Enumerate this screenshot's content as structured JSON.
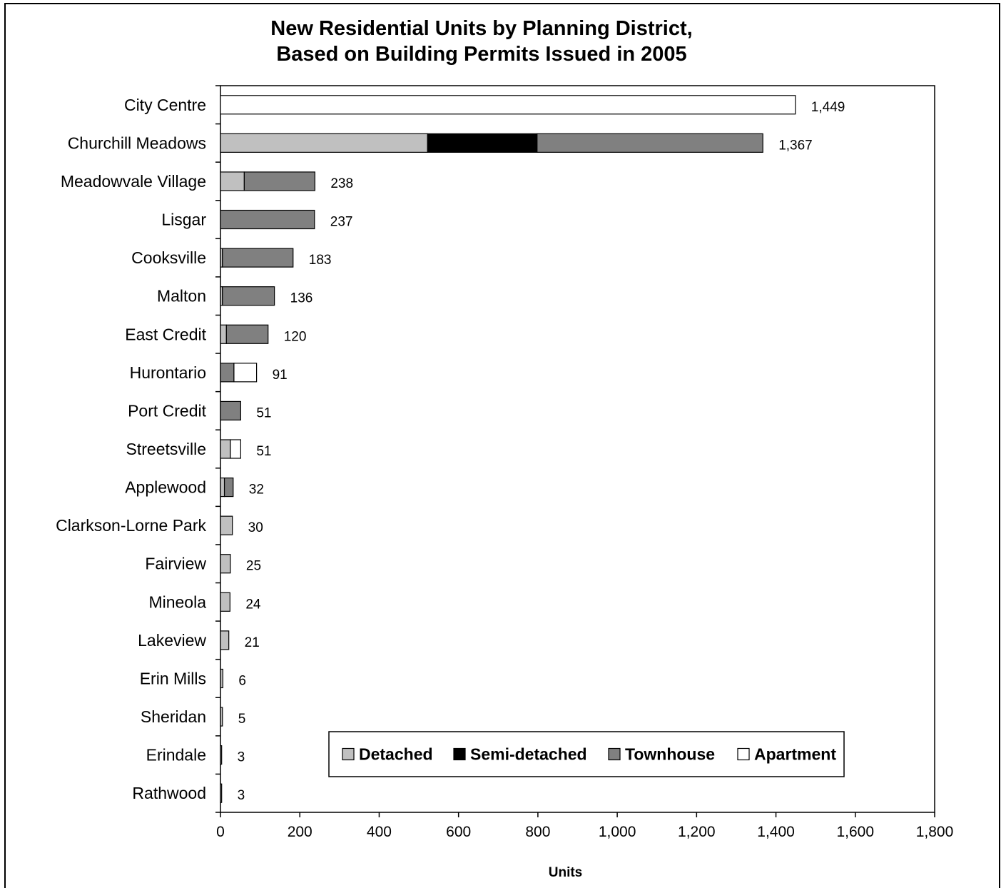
{
  "chart_data": {
    "type": "bar",
    "orientation": "horizontal",
    "stacked": true,
    "title": "New Residential Units by Planning District, Based on Building Permits Issued in 2005",
    "title_lines": [
      "New Residential Units by Planning District,",
      "Based on Building Permits Issued in 2005"
    ],
    "xlabel": "Units",
    "ylabel": "",
    "xlim": [
      0,
      1800
    ],
    "xticks": [
      0,
      200,
      400,
      600,
      800,
      1000,
      1200,
      1400,
      1600,
      1800
    ],
    "xtick_labels": [
      "0",
      "200",
      "400",
      "600",
      "800",
      "1,000",
      "1,200",
      "1,400",
      "1,600",
      "1,800"
    ],
    "grid": false,
    "legend_position": "bottom-right, inside plot",
    "categories": [
      "City Centre",
      "Churchill Meadows",
      "Meadowvale Village",
      "Lisgar",
      "Cooksville",
      "Malton",
      "East Credit",
      "Hurontario",
      "Port Credit",
      "Streetsville",
      "Applewood",
      "Clarkson-Lorne Park",
      "Fairview",
      "Mineola",
      "Lakeview",
      "Erin Mills",
      "Sheridan",
      "Erindale",
      "Rathwood"
    ],
    "totals": [
      1449,
      1367,
      238,
      237,
      183,
      136,
      120,
      91,
      51,
      51,
      32,
      30,
      25,
      24,
      21,
      6,
      5,
      3,
      3
    ],
    "total_labels": [
      "1,449",
      "1,367",
      "238",
      "237",
      "183",
      "136",
      "120",
      "91",
      "51",
      "51",
      "32",
      "30",
      "25",
      "24",
      "21",
      "6",
      "5",
      "3",
      "3"
    ],
    "series": [
      {
        "name": "Detached",
        "color": "#c0c0c0",
        "values": [
          0,
          522,
          60,
          0,
          5,
          5,
          15,
          0,
          0,
          25,
          10,
          30,
          25,
          24,
          21,
          6,
          5,
          3,
          3
        ]
      },
      {
        "name": "Semi-detached",
        "color": "#000000",
        "values": [
          0,
          276,
          0,
          0,
          0,
          0,
          0,
          0,
          0,
          0,
          0,
          0,
          0,
          0,
          0,
          0,
          0,
          0,
          0
        ]
      },
      {
        "name": "Townhouse",
        "color": "#808080",
        "values": [
          0,
          569,
          178,
          237,
          178,
          131,
          105,
          34,
          51,
          0,
          22,
          0,
          0,
          0,
          0,
          0,
          0,
          0,
          0
        ]
      },
      {
        "name": "Apartment",
        "color": "#ffffff",
        "values": [
          1449,
          0,
          0,
          0,
          0,
          0,
          0,
          57,
          0,
          26,
          0,
          0,
          0,
          0,
          0,
          0,
          0,
          0,
          0
        ]
      }
    ]
  }
}
